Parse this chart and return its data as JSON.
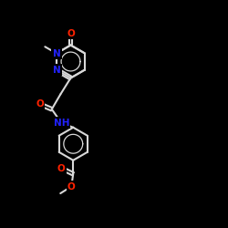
{
  "bg": "#000000",
  "bc": "#d8d8d8",
  "oc": "#ff2200",
  "nc": "#2222ff",
  "lw": 1.5,
  "fs": 7.5,
  "xlim": [
    0,
    10
  ],
  "ylim": [
    0,
    10
  ]
}
